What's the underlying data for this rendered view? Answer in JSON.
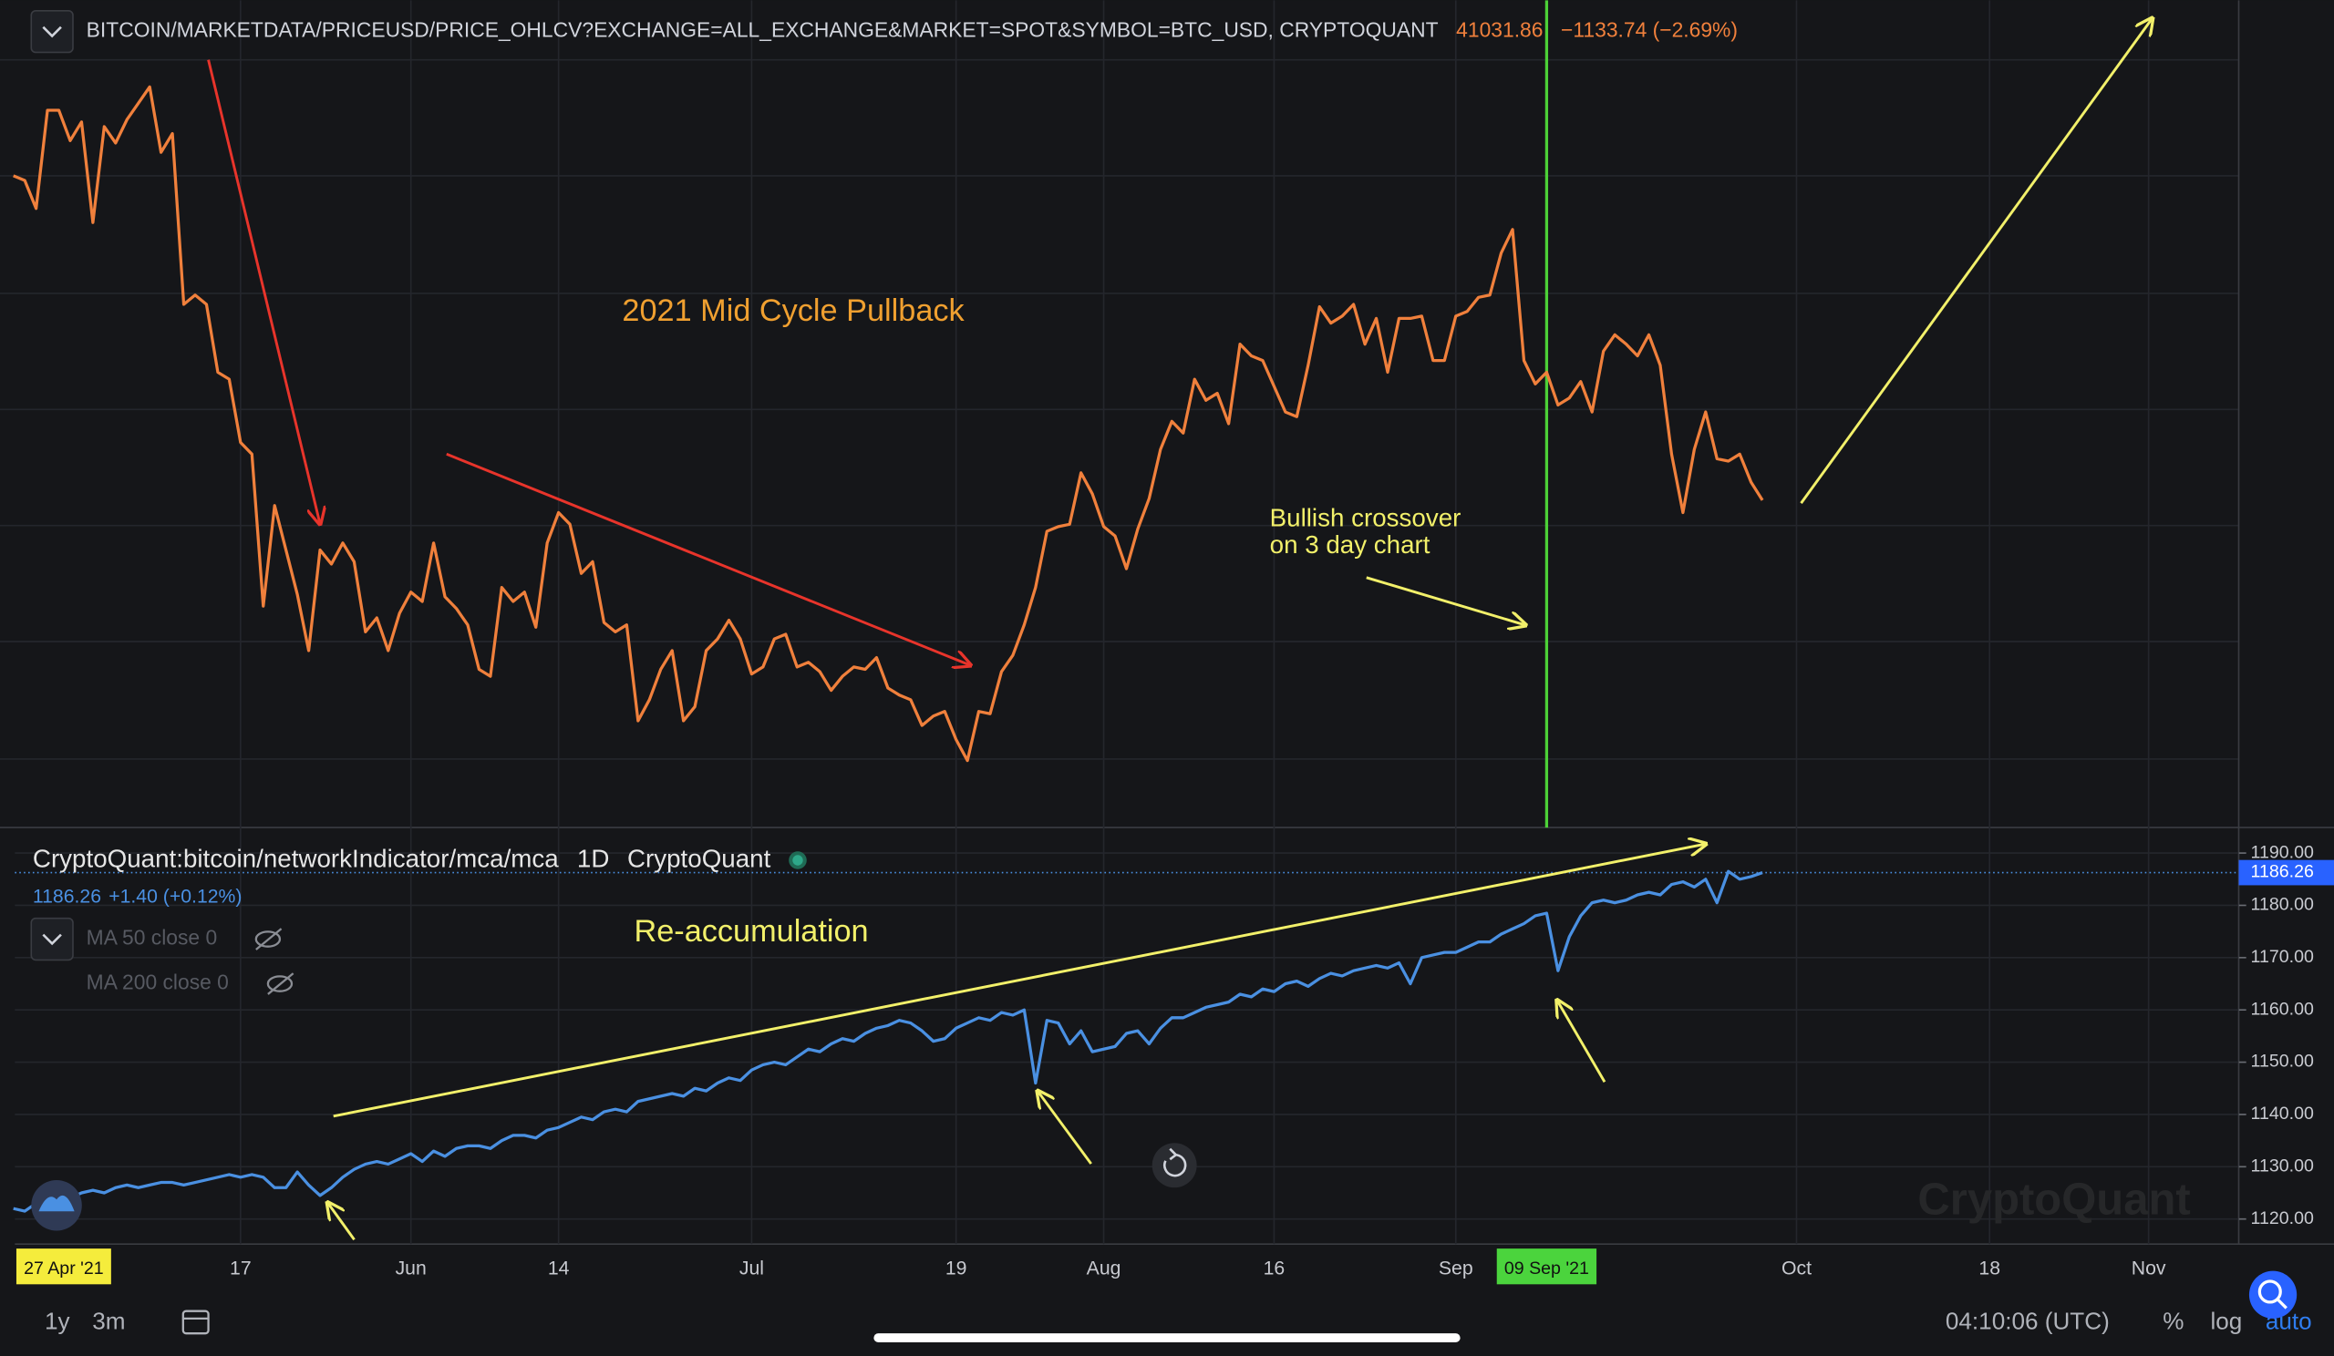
{
  "chart_data": {
    "type": "line",
    "categories": [
      "27 Apr '21",
      null,
      null,
      null,
      null,
      null,
      null,
      null,
      null,
      null,
      null,
      null,
      null,
      null,
      null,
      null,
      null,
      null,
      null,
      null,
      "17",
      null,
      null,
      null,
      null,
      null,
      null,
      null,
      null,
      null,
      null,
      null,
      null,
      null,
      null,
      "Jun",
      null,
      null,
      null,
      null,
      null,
      null,
      null,
      null,
      null,
      null,
      null,
      null,
      "14",
      null,
      null,
      null,
      null,
      null,
      null,
      null,
      null,
      null,
      null,
      null,
      null,
      null,
      null,
      null,
      null,
      "Jul",
      null,
      null,
      null,
      null,
      null,
      null,
      null,
      null,
      null,
      null,
      null,
      null,
      null,
      null,
      null,
      null,
      null,
      "19",
      null,
      null,
      null,
      null,
      null,
      null,
      null,
      null,
      null,
      null,
      null,
      null,
      "Aug",
      null,
      null,
      null,
      null,
      null,
      null,
      null,
      null,
      null,
      null,
      null,
      null,
      null,
      null,
      "16",
      null,
      null,
      null,
      null,
      null,
      null,
      null,
      null,
      null,
      null,
      null,
      null,
      null,
      null,
      null,
      "Sep",
      null,
      null,
      null,
      null,
      null,
      null,
      null,
      "09 Sep '21",
      null,
      null,
      null,
      null,
      null,
      null,
      null,
      null,
      null,
      null,
      null,
      null,
      null,
      null,
      null,
      null,
      null,
      null,
      null,
      null,
      null,
      "Oct",
      null,
      null,
      null,
      null,
      null,
      null,
      null,
      null,
      null,
      null,
      null,
      null,
      null,
      null,
      null,
      null,
      "18",
      null,
      null,
      null,
      null,
      null,
      null,
      null,
      null,
      null,
      null,
      null,
      null,
      null,
      "Nov"
    ],
    "highlights": [
      {
        "index": 0,
        "color": "#f5ec3c"
      },
      {
        "index": 135,
        "color": "#4bd43d"
      }
    ],
    "vline": {
      "index": 135,
      "color": "#4cd137"
    },
    "panes": [
      {
        "ylim": [
          27100,
          62400
        ]
      },
      {
        "ylim": [
          1115.2,
          1194.6
        ],
        "yticks": [
          {
            "value": 1120,
            "label": "1120.00"
          },
          {
            "value": 1130,
            "label": "1130.00"
          },
          {
            "value": 1140,
            "label": "1140.00"
          },
          {
            "value": 1150,
            "label": "1150.00"
          },
          {
            "value": 1160,
            "label": "1160.00"
          },
          {
            "value": 1170,
            "label": "1170.00"
          },
          {
            "value": 1180,
            "label": "1180.00"
          },
          {
            "value": 1190,
            "label": "1190.00"
          }
        ]
      }
    ],
    "series": [
      {
        "name": "BITCOIN/MARKETDATA/PRICEUSD/PRICE_OHLCV?EXCHANGE=ALL_EXCHANGE&MARKET=SPOT&SYMBOL=BTC_USD, CRYPTOQUANT",
        "color": "#f0803c",
        "pane": 0,
        "change": "−1133.74 (−2.69%)",
        "values": [
          54900,
          54700,
          53500,
          57700,
          57700,
          56400,
          57200,
          52900,
          57000,
          56300,
          57300,
          58000,
          58700,
          55900,
          56700,
          49400,
          49800,
          49400,
          46500,
          46200,
          43500,
          43000,
          36500,
          40800,
          38900,
          37000,
          34600,
          38900,
          38300,
          39200,
          38400,
          35400,
          36000,
          34600,
          36200,
          37100,
          36700,
          39200,
          36900,
          36400,
          35700,
          33800,
          33500,
          37300,
          36700,
          37100,
          35600,
          39200,
          40500,
          40000,
          37900,
          38400,
          35800,
          35400,
          35700,
          31600,
          32500,
          33800,
          34600,
          31600,
          32200,
          34600,
          35100,
          35900,
          35100,
          33600,
          33900,
          35100,
          35300,
          33900,
          34100,
          33700,
          32900,
          33500,
          33900,
          33800,
          34300,
          33000,
          32700,
          32500,
          31400,
          31800,
          32000,
          30800,
          29900,
          32000,
          31900,
          33700,
          34400,
          35700,
          37300,
          39700,
          39900,
          40000,
          42200,
          41300,
          39900,
          39500,
          38100,
          39800,
          41100,
          43200,
          44400,
          43900,
          46200,
          45300,
          45600,
          44300,
          47700,
          47200,
          47000,
          45900,
          44800,
          44600,
          46800,
          49300,
          48600,
          48900,
          49400,
          47700,
          48800,
          46500,
          48800,
          48800,
          48900,
          47000,
          47000,
          48900,
          49100,
          49700,
          49800,
          51600,
          52600,
          47000,
          46000,
          46500,
          45100,
          45400,
          46100,
          44800,
          47400,
          48100,
          47700,
          47200,
          48100,
          46800,
          43000,
          40500,
          43200,
          44800,
          42800,
          42700,
          43000,
          41800,
          41031.86,
          null,
          null,
          null,
          null,
          null,
          null,
          null,
          null,
          null,
          null,
          null,
          null,
          null,
          null,
          null,
          null,
          null,
          null,
          null,
          null,
          null,
          null,
          null,
          null,
          null,
          null,
          null,
          null,
          null,
          null,
          null,
          null,
          null,
          null
        ]
      },
      {
        "name": "CryptoQuant:bitcoin/networkIndicator/mca/mca",
        "interval": "1D",
        "source": "CryptoQuant",
        "color": "#4a90e2",
        "pane": 1,
        "change": "+1.40 (+0.12%)",
        "values": [
          1122.0,
          1121.5,
          1123.0,
          1124.0,
          1124.5,
          1124.0,
          1125.0,
          1125.5,
          1125.0,
          1126.0,
          1126.5,
          1126.0,
          1126.5,
          1127.0,
          1127.0,
          1126.5,
          1127.0,
          1127.5,
          1128.0,
          1128.5,
          1128.0,
          1128.5,
          1128.0,
          1126.0,
          1126.0,
          1129.0,
          1126.5,
          1124.5,
          1126.0,
          1128.0,
          1129.5,
          1130.5,
          1131.0,
          1130.5,
          1131.5,
          1132.5,
          1131.0,
          1133.0,
          1132.0,
          1133.5,
          1134.0,
          1134.0,
          1133.5,
          1135.0,
          1136.0,
          1136.0,
          1135.5,
          1137.0,
          1137.5,
          1138.5,
          1139.5,
          1139.0,
          1140.5,
          1141.0,
          1140.5,
          1142.5,
          1143.0,
          1143.5,
          1144.0,
          1143.5,
          1145.0,
          1144.5,
          1146.0,
          1147.0,
          1146.5,
          1148.5,
          1149.5,
          1150.0,
          1149.5,
          1151.0,
          1152.5,
          1152.0,
          1153.5,
          1154.5,
          1154.0,
          1155.5,
          1156.5,
          1157.0,
          1158.0,
          1157.5,
          1156.0,
          1154.0,
          1154.5,
          1156.5,
          1157.5,
          1158.5,
          1158.0,
          1159.5,
          1159.0,
          1160.0,
          1146.0,
          1158.0,
          1157.5,
          1153.5,
          1156.0,
          1152.0,
          1152.5,
          1153.0,
          1155.5,
          1156.0,
          1153.5,
          1156.5,
          1158.5,
          1158.5,
          1159.5,
          1160.5,
          1161.0,
          1161.5,
          1163.0,
          1162.5,
          1164.0,
          1163.5,
          1165.0,
          1165.5,
          1164.5,
          1166.0,
          1167.0,
          1166.5,
          1167.5,
          1168.0,
          1168.5,
          1168.0,
          1169.0,
          1165.0,
          1170.0,
          1170.5,
          1171.0,
          1171.0,
          1172.0,
          1173.0,
          1173.0,
          1174.5,
          1175.5,
          1176.5,
          1178.0,
          1178.5,
          1167.5,
          1174.0,
          1178.0,
          1180.5,
          1181.0,
          1180.5,
          1181.0,
          1182.0,
          1182.5,
          1182.0,
          1184.0,
          1184.5,
          1183.5,
          1185.0,
          1180.5,
          1186.5,
          1185.0,
          1185.5,
          1186.26,
          null,
          null,
          null,
          null,
          null,
          null,
          null,
          null,
          null,
          null,
          null,
          null,
          null,
          null,
          null,
          null,
          null,
          null,
          null,
          null,
          null,
          null,
          null,
          null,
          null,
          null,
          null,
          null,
          null,
          null,
          null,
          null,
          null,
          null
        ]
      }
    ],
    "annotations": [
      "2021 Mid Cycle Pullback",
      "Bullish crossover",
      "on 3 day chart",
      "Re-accumulation"
    ],
    "indicators": [
      "MA 50 close 0",
      "MA 200 close 0"
    ],
    "watermark": "CryptoQuant"
  },
  "footer": {
    "ranges": [
      "1y",
      "3m"
    ],
    "time": "04:10:06 (UTC)",
    "options": [
      "%",
      "log",
      "auto"
    ]
  }
}
